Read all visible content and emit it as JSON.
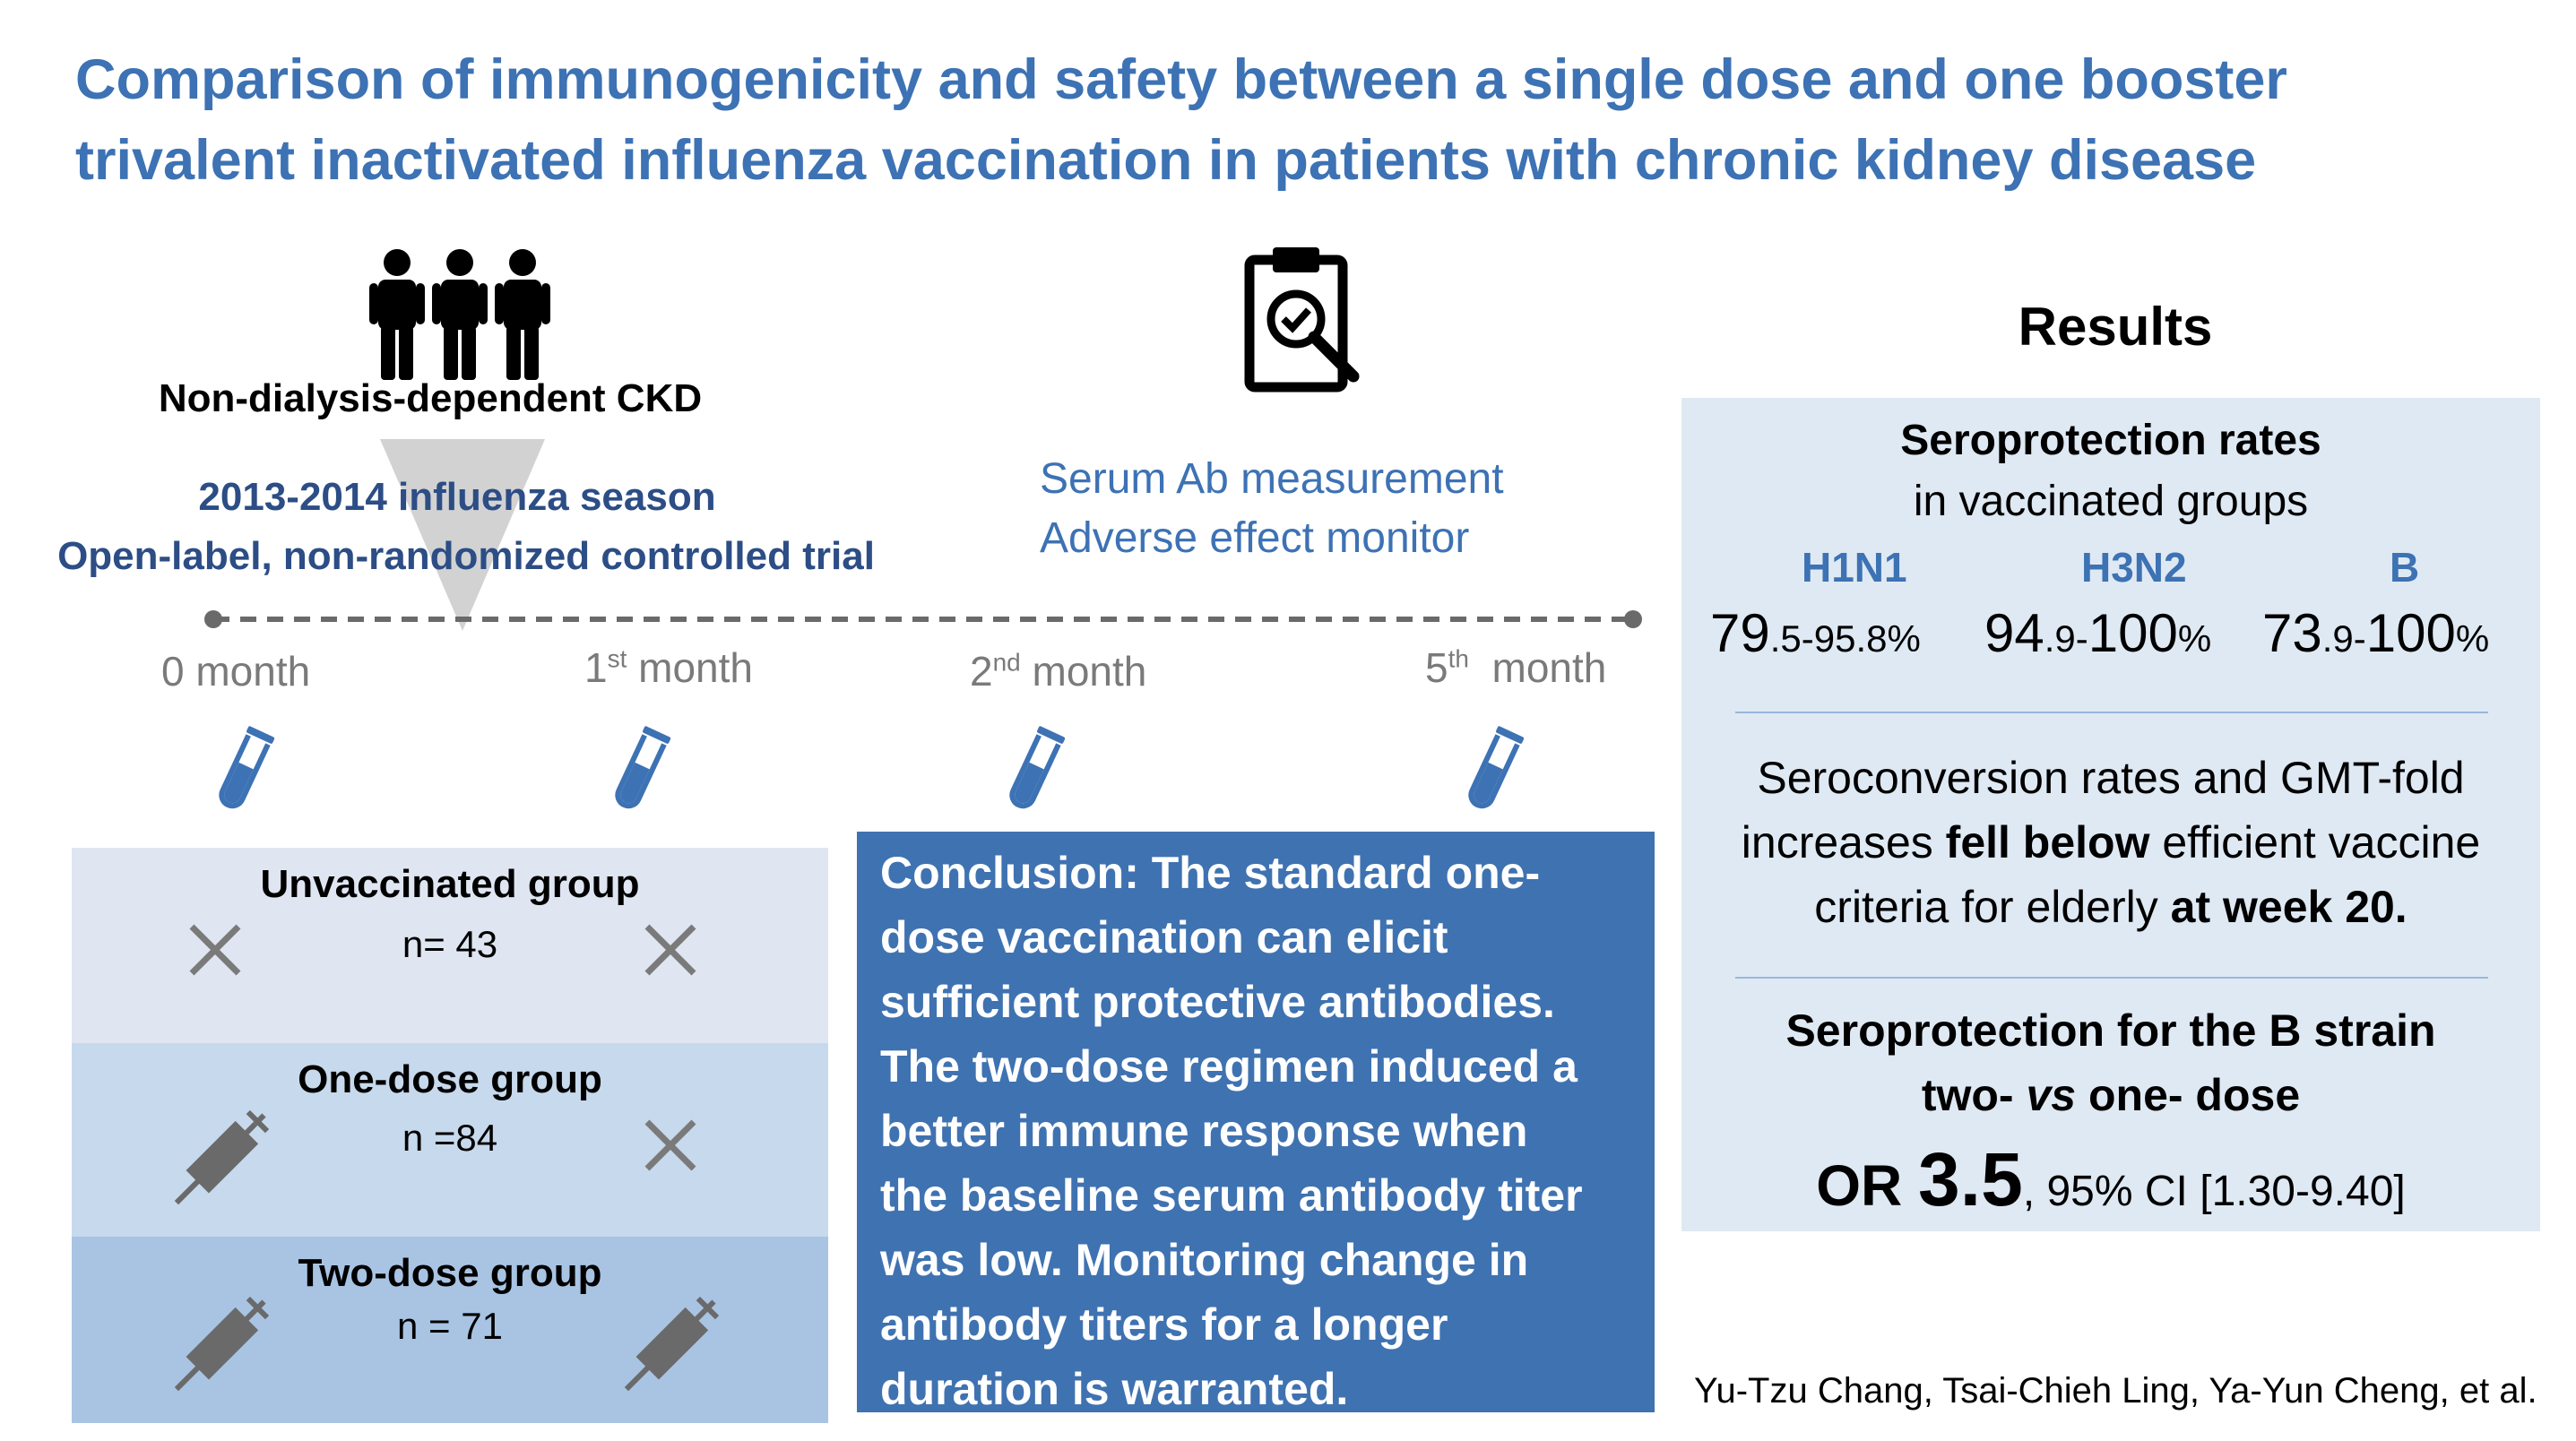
{
  "title": {
    "line1": "Comparison of immunogenicity and safety between a single dose and one booster",
    "line2": "trivalent inactivated influenza vaccination in patients with chronic kidney disease"
  },
  "cohort": {
    "label": "Non-dialysis-dependent CKD",
    "season": "2013-2014 influenza season",
    "design": "Open-label, non-randomized controlled trial"
  },
  "monitoring": {
    "line1": "Serum Ab measurement",
    "line2": "Adverse effect monitor"
  },
  "timeline": {
    "t0": "0 month",
    "t1_num": "1",
    "t1_sup": "st",
    "t1_rest": " month",
    "t2_num": "2",
    "t2_sup": "nd",
    "t2_rest": " month",
    "t3_num": "5",
    "t3_sup": "th",
    "t3_rest": "  month"
  },
  "groups": [
    {
      "name": "Unvaccinated group",
      "n": "n= 43",
      "color": "#dfe6f1"
    },
    {
      "name": "One-dose group",
      "n": "n =84",
      "color": "#c7d9ec"
    },
    {
      "name": "Two-dose group",
      "n": "n = 71",
      "color": "#a9c4e3"
    }
  ],
  "conclusion": [
    "Conclusion: The standard one-",
    "dose vaccination can elicit",
    "sufficient protective antibodies.",
    "The two-dose regimen induced a",
    "better immune response when",
    "the baseline serum antibody titer",
    "was low. Monitoring change in",
    "antibody titers for a longer",
    "duration is warranted."
  ],
  "results": {
    "heading": "Results",
    "sero_title": "Seroprotection rates",
    "sero_sub": "in vaccinated groups",
    "strains": [
      "H1N1",
      "H3N2",
      "B"
    ],
    "h1n1": {
      "a": "79",
      "b": ".5-95",
      "c": ".8%"
    },
    "h3n2": {
      "a": "94",
      "b": ".9-",
      "c": "100",
      "d": "%"
    },
    "b": {
      "a": "73",
      "b": ".9-",
      "c": "100",
      "d": "%"
    },
    "conv_line1": "Seroconversion rates and GMT-fold",
    "conv_line2a": "increases ",
    "conv_line2b": "fell below",
    "conv_line2c": " efficient vaccine",
    "conv_line3a": "criteria for elderly ",
    "conv_line3b": "at week 20.",
    "bstrain_line1": "Seroprotection for the B strain",
    "bstrain_line2a": "two- ",
    "bstrain_line2b": "vs",
    "bstrain_line2c": " one- dose",
    "or_label": "OR ",
    "or_value": "3.5",
    "or_ci": ", 95% CI [1.30-9.40]"
  },
  "authors": "Yu-Tzu Chang, Tsai-Chieh Ling, Ya-Yun Cheng, et al.",
  "colors": {
    "title": "#3d72b4",
    "design": "#2c4d85",
    "conclusion_bg": "#3f72b1",
    "results_bg": "#dfe9f3",
    "icon_gray": "#7a7a7a",
    "tube": "#3d72b4"
  }
}
